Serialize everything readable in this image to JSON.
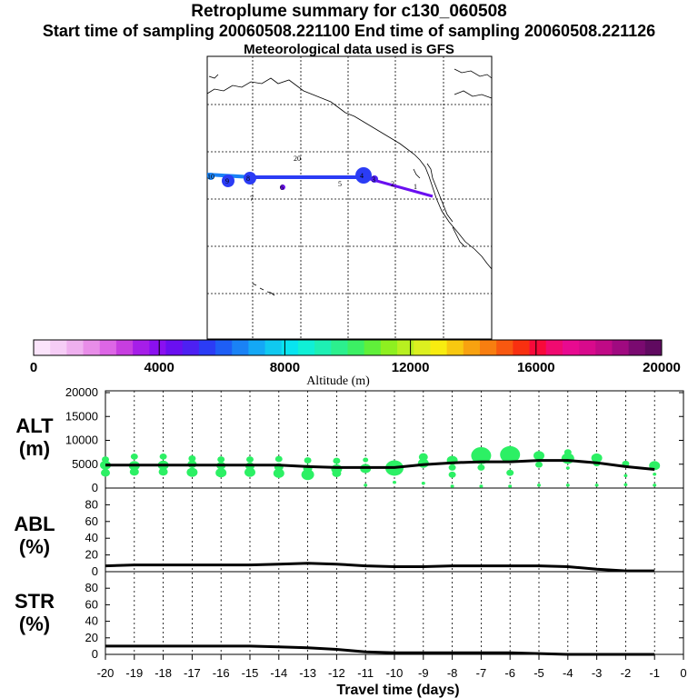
{
  "header": {
    "title": "Retroplume summary for c130_060508",
    "sampling": "Start time of sampling 20060508.221100     End time of sampling 20060508.221126",
    "met": "Meteorological data used is GFS"
  },
  "colorbar": {
    "label": "Altitude (m)",
    "ticks": [
      "0",
      "4000",
      "8000",
      "12000",
      "16000",
      "20000"
    ],
    "colors": [
      "#fbe4fb",
      "#f6cdf6",
      "#efb0ef",
      "#e88de8",
      "#dd66e6",
      "#c73ee0",
      "#a61ee8",
      "#8a10f0",
      "#6a0ff0",
      "#4d20f2",
      "#2b3cf5",
      "#1e5ef5",
      "#1a82f5",
      "#14a8f5",
      "#10c9f0",
      "#08e4f0",
      "#10f0d6",
      "#1ef0b4",
      "#2cf08e",
      "#3cf064",
      "#60f03a",
      "#8ef020",
      "#b8f020",
      "#dcf020",
      "#f8ec10",
      "#f8c810",
      "#f8a210",
      "#f87e10",
      "#f85810",
      "#f83010",
      "#f80a3a",
      "#f00a70",
      "#e80a90",
      "#d80a8c",
      "#c00a86",
      "#a00a80",
      "#7a0a70",
      "#600a60"
    ]
  },
  "map": {
    "day_labels": [
      "20",
      "1",
      "2",
      "3",
      "4",
      "5",
      "6",
      "7",
      "8",
      "9",
      "10"
    ]
  },
  "panels": {
    "alt": {
      "label_top": "ALT",
      "label_bottom": "(m)",
      "yticks": [
        "20000",
        "15000",
        "10000",
        "5000",
        "0"
      ]
    },
    "abl": {
      "label_top": "ABL",
      "label_bottom": "(%)",
      "yticks": [
        "80",
        "60",
        "40",
        "20",
        "0"
      ]
    },
    "str": {
      "label_top": "STR",
      "label_bottom": "(%)",
      "yticks": [
        "80",
        "60",
        "40",
        "20",
        "0"
      ]
    }
  },
  "xaxis": {
    "label": "Travel time (days)"
  },
  "chart_data": {
    "type": "line",
    "x": [
      -20,
      -19,
      -18,
      -17,
      -16,
      -15,
      -14,
      -13,
      -12,
      -11,
      -10,
      -9,
      -8,
      -7,
      -6,
      -5,
      -4,
      -3,
      -2,
      -1
    ],
    "xticks": [
      "-20",
      "-19",
      "-18",
      "-17",
      "-16",
      "-15",
      "-14",
      "-13",
      "-12",
      "-11",
      "-10",
      "-9",
      "-8",
      "-7",
      "-6",
      "-5",
      "-4",
      "-3",
      "-2",
      "-1",
      "0"
    ],
    "xlim": [
      -20,
      0
    ],
    "series": [
      {
        "name": "ALT",
        "unit": "m",
        "ylim": [
          0,
          20000
        ],
        "values": [
          4800,
          4800,
          4800,
          4800,
          4800,
          4800,
          4800,
          4500,
          4300,
          4300,
          4300,
          4900,
          5300,
          5500,
          5500,
          5800,
          5800,
          5300,
          4500,
          3900
        ]
      },
      {
        "name": "ABL",
        "unit": "%",
        "ylim": [
          0,
          100
        ],
        "values": [
          7,
          8,
          8,
          8,
          8,
          8,
          9,
          10,
          9,
          7,
          6,
          6,
          7,
          7,
          7,
          7,
          6,
          3,
          1,
          1
        ]
      },
      {
        "name": "STR",
        "unit": "%",
        "ylim": [
          0,
          100
        ],
        "values": [
          10,
          10,
          10,
          10,
          10,
          10,
          9,
          8,
          6,
          3,
          2,
          2,
          2,
          2,
          2,
          1,
          0,
          0,
          0,
          0
        ]
      }
    ],
    "alt_scatter": [
      {
        "x": -20,
        "alt": 6000,
        "s": 4
      },
      {
        "x": -20,
        "alt": 4800,
        "s": 6
      },
      {
        "x": -20,
        "alt": 3200,
        "s": 5
      },
      {
        "x": -19,
        "alt": 6600,
        "s": 4
      },
      {
        "x": -19,
        "alt": 4700,
        "s": 6
      },
      {
        "x": -19,
        "alt": 3400,
        "s": 5
      },
      {
        "x": -18,
        "alt": 6600,
        "s": 4
      },
      {
        "x": -18,
        "alt": 4800,
        "s": 6
      },
      {
        "x": -18,
        "alt": 3400,
        "s": 5
      },
      {
        "x": -17,
        "alt": 6200,
        "s": 4
      },
      {
        "x": -17,
        "alt": 5000,
        "s": 5
      },
      {
        "x": -17,
        "alt": 3300,
        "s": 6
      },
      {
        "x": -16,
        "alt": 6000,
        "s": 4
      },
      {
        "x": -16,
        "alt": 4700,
        "s": 5
      },
      {
        "x": -16,
        "alt": 3200,
        "s": 6
      },
      {
        "x": -15,
        "alt": 6000,
        "s": 4
      },
      {
        "x": -15,
        "alt": 4600,
        "s": 5
      },
      {
        "x": -15,
        "alt": 3300,
        "s": 6
      },
      {
        "x": -14,
        "alt": 6100,
        "s": 4
      },
      {
        "x": -14,
        "alt": 4400,
        "s": 5
      },
      {
        "x": -14,
        "alt": 3100,
        "s": 6
      },
      {
        "x": -13,
        "alt": 5800,
        "s": 4
      },
      {
        "x": -13,
        "alt": 4100,
        "s": 5
      },
      {
        "x": -13,
        "alt": 2800,
        "s": 7
      },
      {
        "x": -12,
        "alt": 5700,
        "s": 4
      },
      {
        "x": -12,
        "alt": 4000,
        "s": 6
      },
      {
        "x": -12,
        "alt": 3100,
        "s": 5
      },
      {
        "x": -11,
        "alt": 5900,
        "s": 3
      },
      {
        "x": -11,
        "alt": 4100,
        "s": 6
      },
      {
        "x": -11,
        "alt": 600,
        "s": 2
      },
      {
        "x": -10,
        "alt": 4200,
        "s": 10
      },
      {
        "x": -10,
        "alt": 1200,
        "s": 2
      },
      {
        "x": -9,
        "alt": 6500,
        "s": 5
      },
      {
        "x": -9,
        "alt": 5200,
        "s": 6
      },
      {
        "x": -9,
        "alt": 1000,
        "s": 2
      },
      {
        "x": -8,
        "alt": 5800,
        "s": 6
      },
      {
        "x": -8,
        "alt": 4300,
        "s": 4
      },
      {
        "x": -8,
        "alt": 2800,
        "s": 4
      },
      {
        "x": -8,
        "alt": -200,
        "s": 2
      },
      {
        "x": -7,
        "alt": 6800,
        "s": 11
      },
      {
        "x": -7,
        "alt": 4300,
        "s": 4
      },
      {
        "x": -7,
        "alt": -300,
        "s": 2
      },
      {
        "x": -6,
        "alt": 7000,
        "s": 11
      },
      {
        "x": -6,
        "alt": 3200,
        "s": 4
      },
      {
        "x": -6,
        "alt": -200,
        "s": 2
      },
      {
        "x": -5,
        "alt": 6800,
        "s": 6
      },
      {
        "x": -5,
        "alt": 4900,
        "s": 4
      },
      {
        "x": -5,
        "alt": 600,
        "s": 2
      },
      {
        "x": -4,
        "alt": 7500,
        "s": 4
      },
      {
        "x": -4,
        "alt": 6200,
        "s": 7
      },
      {
        "x": -4,
        "alt": 4200,
        "s": 2
      },
      {
        "x": -4,
        "alt": 600,
        "s": 2
      },
      {
        "x": -3,
        "alt": 6300,
        "s": 6
      },
      {
        "x": -3,
        "alt": 5200,
        "s": 4
      },
      {
        "x": -3,
        "alt": 600,
        "s": 2
      },
      {
        "x": -2,
        "alt": 5100,
        "s": 4
      },
      {
        "x": -2,
        "alt": 2600,
        "s": 2
      },
      {
        "x": -2,
        "alt": 700,
        "s": 2
      },
      {
        "x": -1,
        "alt": 4700,
        "s": 6
      },
      {
        "x": -1,
        "alt": 2900,
        "s": 2
      },
      {
        "x": -1,
        "alt": 600,
        "s": 2
      }
    ]
  }
}
